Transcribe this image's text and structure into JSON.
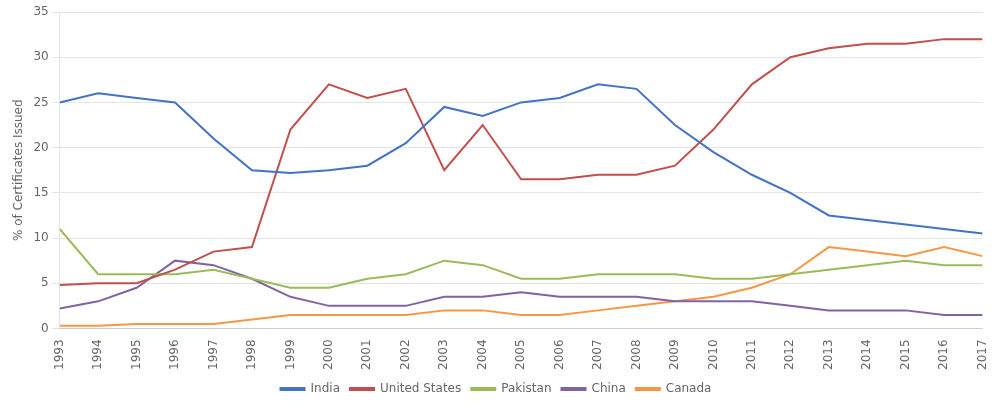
{
  "chart_data": {
    "type": "line",
    "x": [
      1993,
      1994,
      1995,
      1996,
      1997,
      1998,
      1999,
      2000,
      2001,
      2002,
      2003,
      2004,
      2005,
      2006,
      2007,
      2008,
      2009,
      2010,
      2011,
      2012,
      2013,
      2014,
      2015,
      2016,
      2017
    ],
    "series": [
      {
        "name": "India",
        "color": "#4472C4",
        "values": [
          25.0,
          26.0,
          25.5,
          25.0,
          21.0,
          17.5,
          17.2,
          17.5,
          18.0,
          20.5,
          24.5,
          23.5,
          25.0,
          25.5,
          27.0,
          26.5,
          22.5,
          19.5,
          17.0,
          15.0,
          12.5,
          12.0,
          11.5,
          11.0,
          10.5
        ]
      },
      {
        "name": "United States",
        "color": "#C0504D",
        "values": [
          4.8,
          5.0,
          5.0,
          6.5,
          8.5,
          9.0,
          22.0,
          27.0,
          25.5,
          26.5,
          17.5,
          22.5,
          16.5,
          16.5,
          17.0,
          17.0,
          18.0,
          22.0,
          27.0,
          30.0,
          31.0,
          31.5,
          31.5,
          32.0,
          32.0
        ]
      },
      {
        "name": "Pakistan",
        "color": "#9BBB59",
        "values": [
          11.0,
          6.0,
          6.0,
          6.0,
          6.5,
          5.5,
          4.5,
          4.5,
          5.5,
          6.0,
          7.5,
          7.0,
          5.5,
          5.5,
          6.0,
          6.0,
          6.0,
          5.5,
          5.5,
          6.0,
          6.5,
          7.0,
          7.5,
          7.0,
          7.0
        ]
      },
      {
        "name": "China",
        "color": "#8064A2",
        "values": [
          2.2,
          3.0,
          4.5,
          7.5,
          7.0,
          5.5,
          3.5,
          2.5,
          2.5,
          2.5,
          3.5,
          3.5,
          4.0,
          3.5,
          3.5,
          3.5,
          3.0,
          3.0,
          3.0,
          2.5,
          2.0,
          2.0,
          2.0,
          1.5,
          1.5
        ]
      },
      {
        "name": "Canada",
        "color": "#F79646",
        "values": [
          0.3,
          0.3,
          0.5,
          0.5,
          0.5,
          1.0,
          1.5,
          1.5,
          1.5,
          1.5,
          2.0,
          2.0,
          1.5,
          1.5,
          2.0,
          2.5,
          3.0,
          3.5,
          4.5,
          6.0,
          9.0,
          8.5,
          8.0,
          9.0,
          8.0
        ]
      }
    ],
    "ylabel": "% of Certificates Issued",
    "xlim": [
      1993,
      2017
    ],
    "xticks": [
      1993,
      1994,
      1995,
      1996,
      1997,
      1998,
      1999,
      2000,
      2001,
      2002,
      2003,
      2004,
      2005,
      2006,
      2007,
      2008,
      2009,
      2010,
      2011,
      2012,
      2013,
      2014,
      2015,
      2016,
      2017
    ],
    "ylim": [
      0,
      35
    ],
    "yticks": [
      0,
      5,
      10,
      15,
      20,
      25,
      30,
      35
    ],
    "grid": "y",
    "legend": "bottom"
  }
}
